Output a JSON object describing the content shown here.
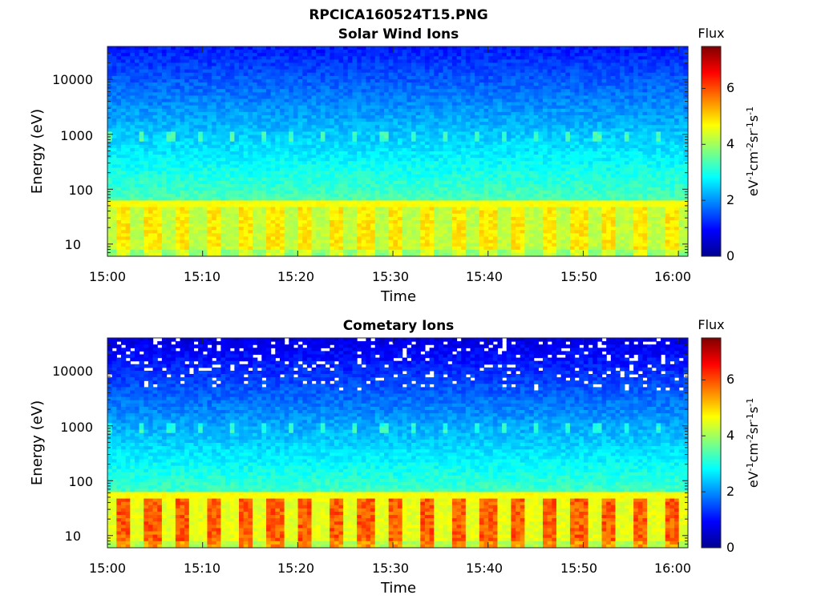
{
  "figure": {
    "title": "RPCICA160524T15.PNG"
  },
  "colormap": "jet",
  "chart_data": [
    {
      "type": "heatmap",
      "title": "Solar Wind Ions",
      "xlabel": "Time",
      "ylabel": "Energy (eV)",
      "x_ticks": [
        "15:00",
        "15:10",
        "15:20",
        "15:30",
        "15:40",
        "15:50",
        "16:00"
      ],
      "x_range": [
        "15:00",
        "16:01"
      ],
      "y_scale": "log",
      "y_ticks": [
        10,
        100,
        1000,
        10000
      ],
      "y_tick_labels": [
        "10",
        "100",
        "1000",
        "10000"
      ],
      "y_range": [
        6,
        40000
      ],
      "colorbar": {
        "title": "Flux",
        "unit": "eV-1 cm-2 sr-1 s-1",
        "range": [
          0,
          7.5
        ],
        "ticks": [
          0,
          2,
          4,
          6
        ]
      },
      "bands": [
        {
          "energy_range": [
            6,
            45
          ],
          "flux": 4.3,
          "description": "low-energy band, pulses ~every 3.2 min"
        },
        {
          "energy_range": [
            45,
            60
          ],
          "flux": 4.5
        },
        {
          "energy_range": [
            60,
            1000
          ],
          "flux": "3.4 → 2.1"
        },
        {
          "energy_range": [
            700,
            1100
          ],
          "flux": 2.9,
          "description": "periodic bursts"
        },
        {
          "energy_range": [
            1000,
            40000
          ],
          "flux": "2.0 → 1.0"
        }
      ]
    },
    {
      "type": "heatmap",
      "title": "Cometary Ions",
      "xlabel": "Time",
      "ylabel": "Energy (eV)",
      "x_ticks": [
        "15:00",
        "15:10",
        "15:20",
        "15:30",
        "15:40",
        "15:50",
        "16:00"
      ],
      "x_range": [
        "15:00",
        "16:01"
      ],
      "y_scale": "log",
      "y_ticks": [
        10,
        100,
        1000,
        10000
      ],
      "y_tick_labels": [
        "10",
        "100",
        "1000",
        "10000"
      ],
      "y_range": [
        6,
        40000
      ],
      "colorbar": {
        "title": "Flux",
        "unit": "eV-1 cm-2 sr-1 s-1",
        "range": [
          0,
          7.5
        ],
        "ticks": [
          0,
          2,
          4,
          6
        ]
      },
      "bands": [
        {
          "energy_range": [
            6,
            45
          ],
          "flux": 5.5,
          "description": "strong pulses up to ~6.2, ~every 3.2 min"
        },
        {
          "energy_range": [
            45,
            60
          ],
          "flux": 4.5
        },
        {
          "energy_range": [
            60,
            1000
          ],
          "flux": "3.2 → 1.5"
        },
        {
          "energy_range": [
            1000,
            40000
          ],
          "flux": "1.3 → 0.6",
          "description": "sparse, with gaps (no data) above ~5000 eV"
        }
      ]
    }
  ]
}
